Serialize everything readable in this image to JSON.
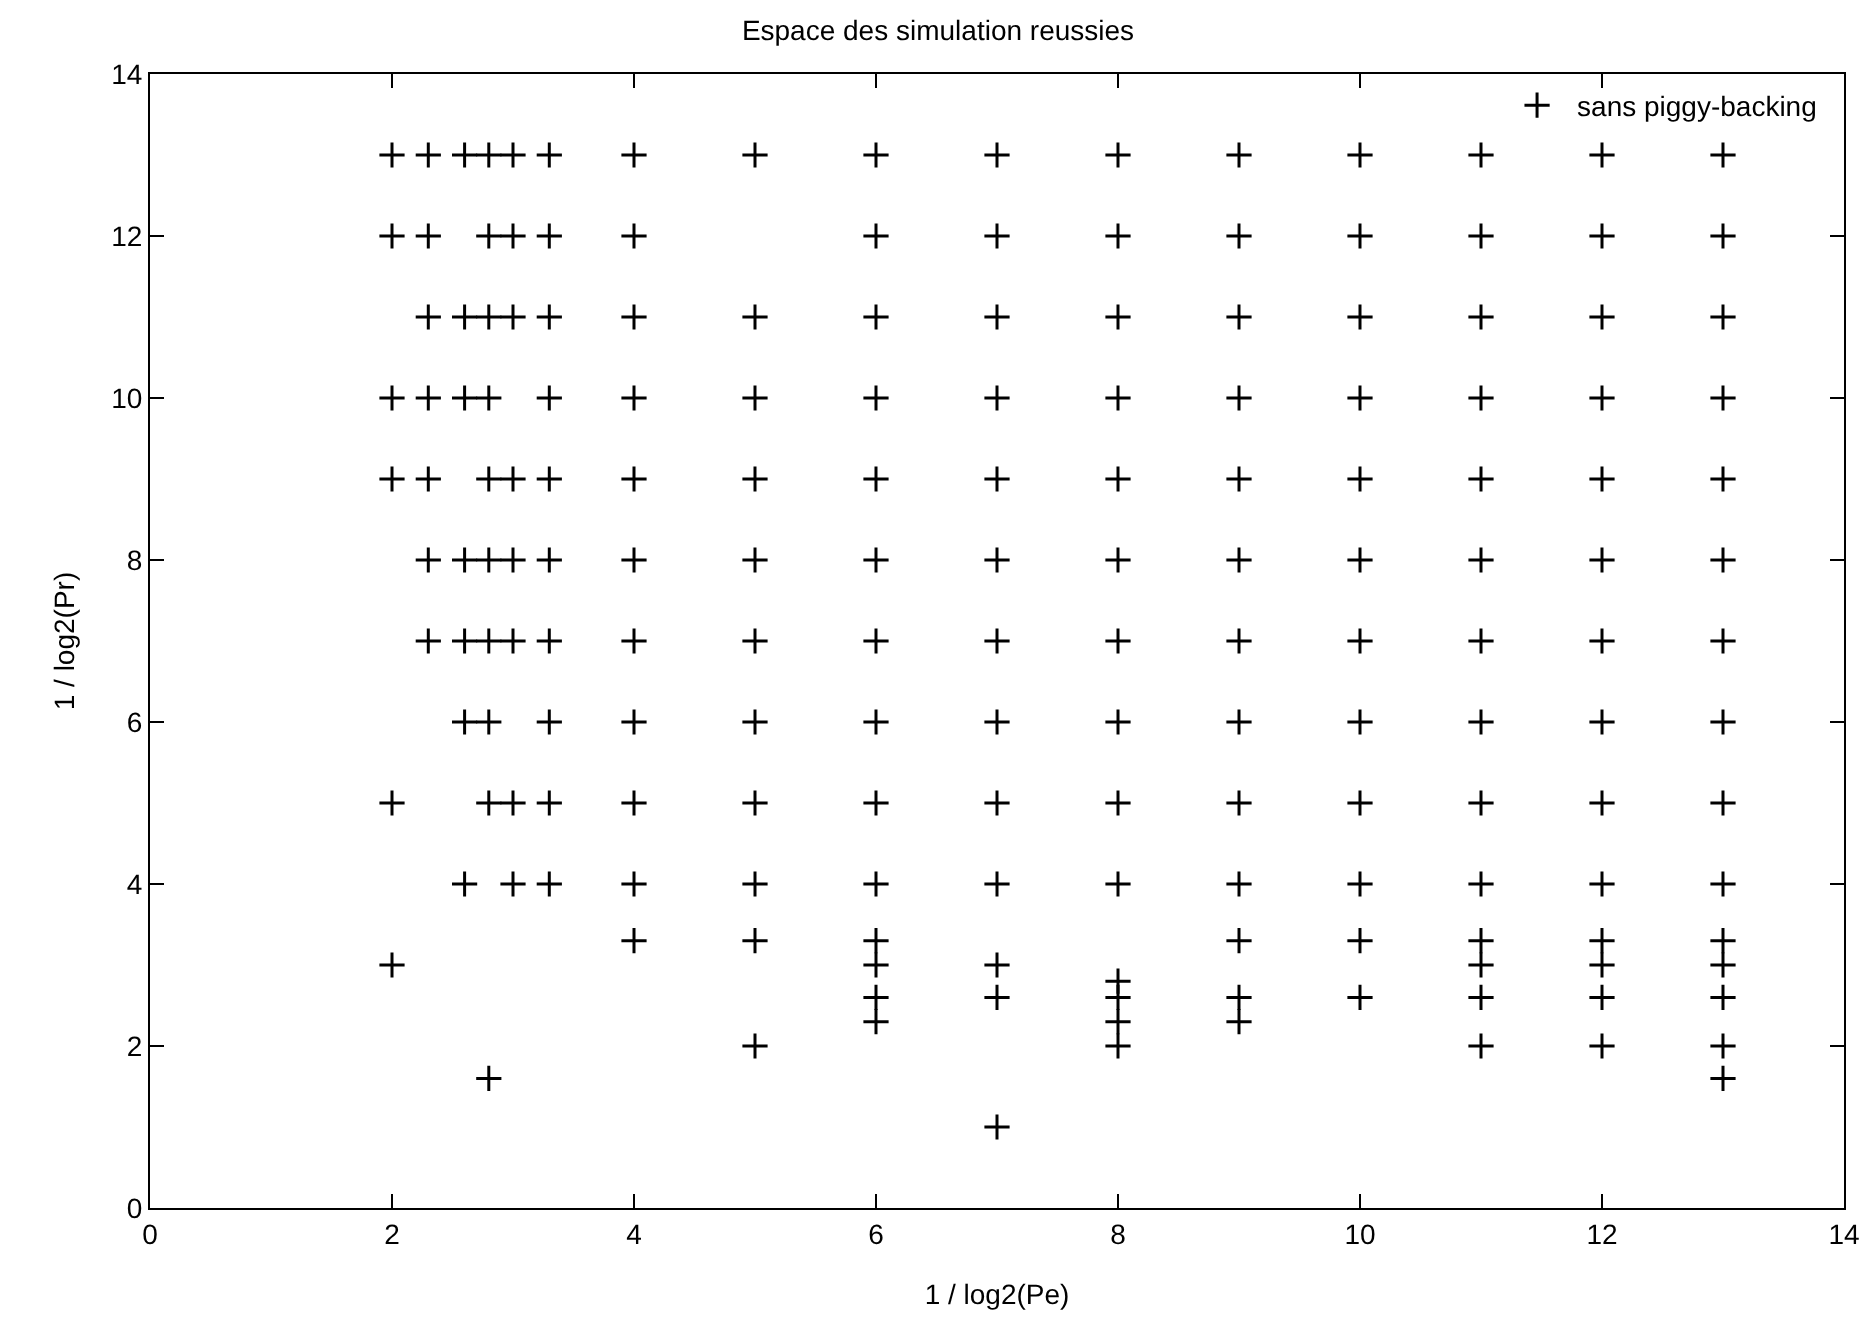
{
  "chart_data": {
    "type": "scatter",
    "title": "Espace des simulation reussies",
    "xlabel": "1 / log2(Pe)",
    "ylabel": "1 / log2(Pr)",
    "xlim": [
      0,
      14
    ],
    "ylim": [
      0,
      14
    ],
    "xticks": [
      0,
      2,
      4,
      6,
      8,
      10,
      12,
      14
    ],
    "yticks": [
      0,
      2,
      4,
      6,
      8,
      10,
      12,
      14
    ],
    "marker": "cross",
    "legend": "top right",
    "x": [
      2,
      2,
      2,
      2,
      2,
      2,
      2.3,
      2.3,
      2.3,
      2.3,
      2.3,
      2.3,
      2.3,
      2.6,
      2.6,
      2.6,
      2.6,
      2.6,
      2.6,
      2.6,
      2.8,
      2.8,
      2.8,
      2.8,
      2.8,
      2.8,
      2.8,
      2.8,
      2.8,
      2.8,
      3,
      3,
      3,
      3,
      3,
      3,
      3,
      3,
      3.3,
      3.3,
      3.3,
      3.3,
      3.3,
      3.3,
      3.3,
      3.3,
      3.3,
      3.3,
      4,
      4,
      4,
      4,
      4,
      4,
      4,
      4,
      4,
      4,
      4,
      5,
      5,
      5,
      5,
      5,
      5,
      5,
      5,
      5,
      5,
      5,
      6,
      6,
      6,
      6,
      6,
      6,
      6,
      6,
      6,
      6,
      6,
      6,
      6,
      6,
      7,
      7,
      7,
      7,
      7,
      7,
      7,
      7,
      7,
      7,
      7,
      7,
      7,
      8,
      8,
      8,
      8,
      8,
      8,
      8,
      8,
      8,
      8,
      8,
      8,
      8,
      8,
      9,
      9,
      9,
      9,
      9,
      9,
      9,
      9,
      9,
      9,
      9,
      9,
      9,
      10,
      10,
      10,
      10,
      10,
      10,
      10,
      10,
      10,
      10,
      10,
      10,
      11,
      11,
      11,
      11,
      11,
      11,
      11,
      11,
      11,
      11,
      11,
      11,
      11,
      11,
      12,
      12,
      12,
      12,
      12,
      12,
      12,
      12,
      12,
      12,
      12,
      12,
      12,
      12,
      13,
      13,
      13,
      13,
      13,
      13,
      13,
      13,
      13,
      13,
      13,
      13,
      13,
      13,
      13
    ],
    "series": [
      {
        "name": "sans piggy-backing",
        "color": "#000000",
        "values": [
          13,
          12,
          10,
          9,
          5,
          3,
          13,
          12,
          11,
          10,
          9,
          8,
          7,
          13,
          11,
          10,
          8,
          7,
          6,
          4,
          13,
          12,
          11,
          10,
          9,
          8,
          7,
          6,
          5,
          1.6,
          13,
          12,
          11,
          9,
          8,
          7,
          5,
          4,
          13,
          12,
          11,
          10,
          9,
          8,
          7,
          6,
          5,
          4,
          13,
          12,
          11,
          10,
          9,
          8,
          7,
          6,
          5,
          4,
          3.3,
          13,
          11,
          10,
          9,
          8,
          7,
          6,
          5,
          4,
          3.3,
          2,
          13,
          12,
          11,
          10,
          9,
          8,
          7,
          6,
          5,
          4,
          3.3,
          3,
          2.6,
          2.3,
          13,
          12,
          11,
          10,
          9,
          8,
          7,
          6,
          5,
          4,
          3,
          2.6,
          1,
          13,
          12,
          11,
          10,
          9,
          8,
          7,
          6,
          5,
          4,
          2.8,
          2.6,
          2.3,
          2,
          13,
          12,
          11,
          10,
          9,
          8,
          7,
          6,
          5,
          4,
          3.3,
          2.6,
          2.3,
          13,
          12,
          11,
          10,
          9,
          8,
          7,
          6,
          5,
          4,
          3.3,
          2.6,
          13,
          12,
          11,
          10,
          9,
          8,
          7,
          6,
          5,
          4,
          3.3,
          3,
          2.6,
          2,
          13,
          12,
          11,
          10,
          9,
          8,
          7,
          6,
          5,
          4,
          3.3,
          3,
          2.6,
          2,
          13,
          12,
          11,
          10,
          9,
          8,
          7,
          6,
          5,
          4,
          3.3,
          3,
          2.6,
          2,
          1.6
        ]
      }
    ]
  }
}
